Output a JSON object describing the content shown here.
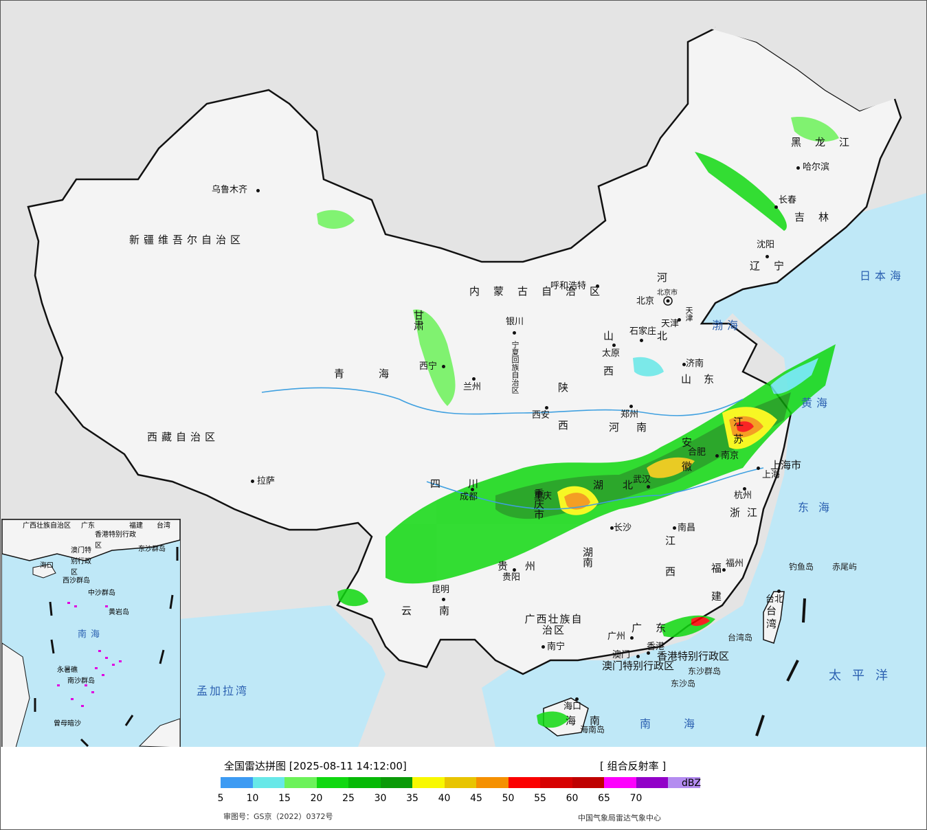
{
  "map": {
    "provinces": [
      "新疆维吾尔自治区",
      "西藏自治区",
      "青海",
      "甘肃",
      "四川",
      "云南",
      "内蒙古自治区",
      "黑龙江",
      "吉林",
      "辽宁",
      "河北",
      "山西",
      "陕西",
      "河南",
      "山东",
      "江苏",
      "安徽",
      "湖北",
      "湖南",
      "江西",
      "浙江",
      "福建",
      "广东",
      "广西壮族自治区",
      "贵州",
      "重庆市",
      "宁夏回族自治区",
      "海南",
      "台湾",
      "上海市",
      "北京市",
      "天津",
      "香港特别行政区",
      "澳门特别行政区"
    ],
    "cities": [
      "乌鲁木齐",
      "拉萨",
      "西宁",
      "兰州",
      "银川",
      "呼和浩特",
      "北京",
      "天津",
      "石家庄",
      "太原",
      "济南",
      "郑州",
      "西安",
      "成都",
      "重庆",
      "贵阳",
      "昆明",
      "南宁",
      "广州",
      "澳门",
      "香港",
      "海口",
      "长沙",
      "武汉",
      "南昌",
      "合肥",
      "南京",
      "上海",
      "杭州",
      "福州",
      "台北",
      "哈尔滨",
      "长春",
      "沈阳"
    ],
    "seas": [
      "日本海",
      "渤海",
      "黄海",
      "东海",
      "南海",
      "太平洋",
      "孟加拉湾"
    ],
    "islands": [
      "钓鱼岛",
      "赤尾屿",
      "东沙群岛",
      "东沙岛",
      "海南岛",
      "台湾岛"
    ],
    "inset_labels": [
      "广西壮族自治区",
      "广东",
      "福建",
      "台湾",
      "香港特别行政区",
      "澳门特别行政区",
      "海口",
      "东沙群岛",
      "西沙群岛",
      "中沙群岛",
      "黄岩岛",
      "南海",
      "永暑礁",
      "南沙群岛",
      "曾母暗沙"
    ]
  },
  "legend": {
    "title": "全国雷达拼图 [2025-08-11 14:12:00]",
    "product": "[ 组合反射率 ]",
    "unit": "dBZ",
    "ticks": [
      "5",
      "10",
      "15",
      "20",
      "25",
      "30",
      "35",
      "40",
      "45",
      "50",
      "55",
      "60",
      "65",
      "70"
    ],
    "colors": [
      "#3d9bf3",
      "#67e8e8",
      "#6cf25a",
      "#10d810",
      "#06b906",
      "#0a9a08",
      "#f8f800",
      "#e8c400",
      "#f59000",
      "#fb0000",
      "#d70000",
      "#bf0000",
      "#fd00fd",
      "#9200c8",
      "#b48cf0"
    ],
    "approval": "审图号：GS京（2022）0372号",
    "credit": "中国气象局雷达气象中心"
  }
}
